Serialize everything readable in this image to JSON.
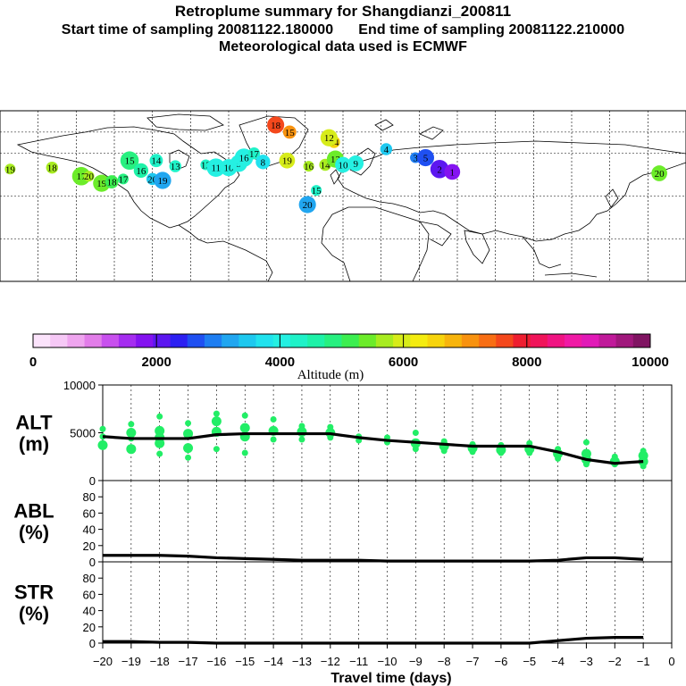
{
  "header": {
    "title": "Retroplume summary for Shangdianzi_200811",
    "start_label": "Start time of sampling 20081122.180000",
    "end_label": "End time of sampling 20081122.210000",
    "met_label": "Meteorological data used is ECMWF"
  },
  "colorbar": {
    "ticks": [
      "0",
      "2000",
      "4000",
      "6000",
      "8000",
      "10000"
    ],
    "label": "Altitude (m)",
    "colors": [
      "#fbe3fb",
      "#f6c8f6",
      "#efa5ef",
      "#e27de9",
      "#c850ee",
      "#a52df0",
      "#8413f0",
      "#5c17f0",
      "#2c20f2",
      "#1f50f2",
      "#1e7ef2",
      "#21a6f0",
      "#1ec8ef",
      "#21e2ee",
      "#25f0e2",
      "#1ff2c8",
      "#1ef2a8",
      "#27f080",
      "#3cee50",
      "#6cec2a",
      "#a8ec20",
      "#d7ec1a",
      "#f4ec10",
      "#f7d40c",
      "#f7b40c",
      "#f8920f",
      "#f86e14",
      "#f4481c",
      "#ee1e30",
      "#f0145a",
      "#f01482",
      "#f01aa5",
      "#e11ab7",
      "#c01a9a",
      "#a0187c",
      "#801462"
    ]
  },
  "map_points": [
    {
      "label": "19",
      "lon": -172,
      "lat": 49,
      "alt": 5600
    },
    {
      "label": "18",
      "lon": -139,
      "lat": 50,
      "alt": 5700
    },
    {
      "label": "17",
      "lon": -116,
      "lat": 44,
      "alt": 5500
    },
    {
      "label": "20",
      "lon": -110,
      "lat": 44,
      "alt": 5600
    },
    {
      "label": "19",
      "lon": -100,
      "lat": 39,
      "alt": 5400
    },
    {
      "label": "18",
      "lon": -92,
      "lat": 40,
      "alt": 5100
    },
    {
      "label": "17",
      "lon": -83,
      "lat": 42,
      "alt": 4900
    },
    {
      "label": "15",
      "lon": -78,
      "lat": 55,
      "alt": 4800
    },
    {
      "label": "16",
      "lon": -69,
      "lat": 48,
      "alt": 4500
    },
    {
      "label": "14",
      "lon": -57,
      "lat": 55,
      "alt": 4400
    },
    {
      "label": "20",
      "lon": -60,
      "lat": 42,
      "alt": 3600
    },
    {
      "label": "19",
      "lon": -52,
      "lat": 41,
      "alt": 3300
    },
    {
      "label": "13",
      "lon": -42,
      "lat": 51,
      "alt": 4300
    },
    {
      "label": "12",
      "lon": -18,
      "lat": 52,
      "alt": 4200
    },
    {
      "label": "11",
      "lon": -10,
      "lat": 50,
      "alt": 4100
    },
    {
      "label": "10",
      "lon": 0,
      "lat": 50,
      "alt": 4000
    },
    {
      "label": "9",
      "lon": 8,
      "lat": 53,
      "alt": 4000
    },
    {
      "label": "16",
      "lon": 12,
      "lat": 57,
      "alt": 4100
    },
    {
      "label": "17",
      "lon": 20,
      "lat": 60,
      "alt": 4300
    },
    {
      "label": "8",
      "lon": 27,
      "lat": 54,
      "alt": 3800
    },
    {
      "label": "18",
      "lon": 37,
      "lat": 80,
      "alt": 7500
    },
    {
      "label": "19",
      "lon": 46,
      "lat": 55,
      "alt": 6000
    },
    {
      "label": "15",
      "lon": 48,
      "lat": 75,
      "alt": 7200
    },
    {
      "label": "16",
      "lon": 63,
      "lat": 51,
      "alt": 5600
    },
    {
      "label": "15",
      "lon": 69,
      "lat": 34,
      "alt": 4200
    },
    {
      "label": "20",
      "lon": 62,
      "lat": 24,
      "alt": 3300
    },
    {
      "label": "14",
      "lon": 76,
      "lat": 52,
      "alt": 5700
    },
    {
      "label": "13",
      "lon": 84,
      "lat": 56,
      "alt": 5400
    },
    {
      "label": "14",
      "lon": 83,
      "lat": 68,
      "alt": 6400
    },
    {
      "label": "12",
      "lon": 79,
      "lat": 71,
      "alt": 6100
    },
    {
      "label": "10",
      "lon": 90,
      "lat": 52,
      "alt": 3900
    },
    {
      "label": "9",
      "lon": 100,
      "lat": 53,
      "alt": 3900
    },
    {
      "label": "4",
      "lon": 124,
      "lat": 63,
      "alt": 3600
    },
    {
      "label": "3",
      "lon": 147,
      "lat": 57,
      "alt": 2800
    },
    {
      "label": "5",
      "lon": 155,
      "lat": 57,
      "alt": 2600
    },
    {
      "label": "2",
      "lon": 166,
      "lat": 49,
      "alt": 2000
    },
    {
      "label": "1",
      "lon": 176,
      "lat": 47,
      "alt": 1800
    },
    {
      "label": "20",
      "lon": 339,
      "lat": 46,
      "alt": 5300
    }
  ],
  "chart_data": [
    {
      "type": "scatter+line",
      "panel": "ALT",
      "label_top": "ALT",
      "label_bottom": "(m)",
      "ylim": [
        0,
        10000
      ],
      "yticks": [
        0,
        5000,
        10000
      ],
      "xlim": [
        -20,
        0
      ],
      "x": [
        -20,
        -19,
        -18,
        -17,
        -16,
        -15,
        -14,
        -13,
        -12,
        -11,
        -10,
        -9,
        -8,
        -7,
        -6,
        -5,
        -4,
        -3,
        -2,
        -1
      ],
      "mean_line": [
        4600,
        4400,
        4400,
        4400,
        4800,
        4900,
        4900,
        4900,
        4900,
        4500,
        4200,
        4000,
        3800,
        3600,
        3600,
        3600,
        3000,
        2200,
        1800,
        2000
      ],
      "points": [
        {
          "x": -20,
          "values": [
            5400,
            3700,
            4600
          ]
        },
        {
          "x": -19,
          "values": [
            5900,
            5000,
            3300,
            4400
          ]
        },
        {
          "x": -18,
          "values": [
            6700,
            5200,
            4500,
            3900,
            2800
          ]
        },
        {
          "x": -17,
          "values": [
            6000,
            4900,
            3400,
            2400
          ]
        },
        {
          "x": -16,
          "values": [
            7000,
            6200,
            5100,
            3300
          ]
        },
        {
          "x": -15,
          "values": [
            6800,
            5500,
            4600,
            2900
          ]
        },
        {
          "x": -14,
          "values": [
            6400,
            5200,
            4300
          ]
        },
        {
          "x": -13,
          "values": [
            5700,
            5100,
            4300
          ]
        },
        {
          "x": -12,
          "values": [
            5600,
            5000,
            4500
          ]
        },
        {
          "x": -11,
          "values": [
            4600,
            4200
          ]
        },
        {
          "x": -10,
          "values": [
            4500,
            4000
          ]
        },
        {
          "x": -9,
          "values": [
            5000,
            3900,
            3300
          ]
        },
        {
          "x": -8,
          "values": [
            4100,
            3600,
            3100
          ]
        },
        {
          "x": -7,
          "values": [
            3800,
            3400,
            3000
          ]
        },
        {
          "x": -6,
          "values": [
            3700,
            3200,
            2900
          ]
        },
        {
          "x": -5,
          "values": [
            3900,
            3300,
            2900
          ]
        },
        {
          "x": -4,
          "values": [
            3300,
            2800,
            2300
          ]
        },
        {
          "x": -3,
          "values": [
            4000,
            2800,
            2200,
            1700
          ]
        },
        {
          "x": -2,
          "values": [
            2500,
            2000,
            1700
          ]
        },
        {
          "x": -1,
          "values": [
            3100,
            2600,
            2000,
            1500
          ]
        }
      ]
    },
    {
      "type": "line",
      "panel": "ABL",
      "label_top": "ABL",
      "label_bottom": "(%)",
      "ylim": [
        0,
        100
      ],
      "yticks": [
        0,
        20,
        40,
        60,
        80
      ],
      "x": [
        -20,
        -19,
        -18,
        -17,
        -16,
        -15,
        -14,
        -13,
        -12,
        -11,
        -10,
        -9,
        -8,
        -7,
        -6,
        -5,
        -4,
        -3,
        -2,
        -1
      ],
      "values": [
        8,
        8,
        8,
        7,
        5,
        4,
        3,
        2,
        2,
        2,
        1,
        1,
        1,
        1,
        1,
        1,
        2,
        5,
        5,
        3
      ]
    },
    {
      "type": "line",
      "panel": "STR",
      "label_top": "STR",
      "label_bottom": "(%)",
      "ylim": [
        0,
        100
      ],
      "yticks": [
        0,
        20,
        40,
        60,
        80
      ],
      "x": [
        -20,
        -19,
        -18,
        -17,
        -16,
        -15,
        -14,
        -13,
        -12,
        -11,
        -10,
        -9,
        -8,
        -7,
        -6,
        -5,
        -4,
        -3,
        -2,
        -1
      ],
      "values": [
        2,
        2,
        1,
        1,
        0,
        0,
        0,
        0,
        0,
        0,
        0,
        0,
        0,
        0,
        0,
        0,
        3,
        6,
        7,
        7
      ]
    }
  ],
  "xaxis": {
    "ticks": [
      -20,
      -19,
      -18,
      -17,
      -16,
      -15,
      -14,
      -13,
      -12,
      -11,
      -10,
      -9,
      -8,
      -7,
      -6,
      -5,
      -4,
      -3,
      -2,
      -1,
      0
    ],
    "tick_labels": [
      "−20",
      "−19",
      "−18",
      "−17",
      "−16",
      "−15",
      "−14",
      "−13",
      "−12",
      "−11",
      "−10",
      "−9",
      "−8",
      "−7",
      "−6",
      "−5",
      "−4",
      "−3",
      "−2",
      "−1",
      "0"
    ],
    "label": "Travel time (days)"
  },
  "colors": {
    "point_green": "#22ee66",
    "line": "#000000",
    "grid": "#000000"
  }
}
